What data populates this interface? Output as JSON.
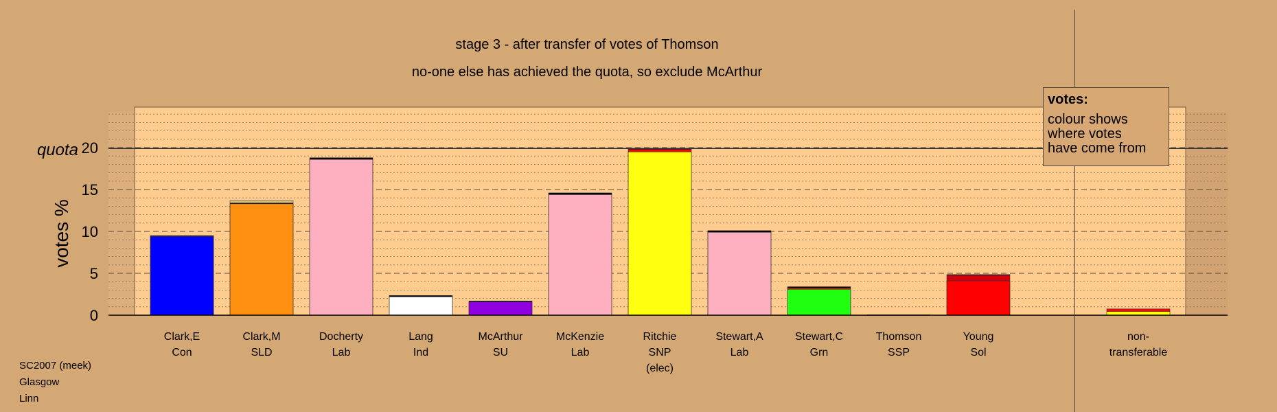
{
  "title": "stage 3 - after transfer of votes of Thomson",
  "subtitle": "no-one else has achieved the quota, so exclude McArthur",
  "legend": {
    "title": "votes:",
    "line1": "colour shows",
    "line2": "where votes",
    "line3": "have come from"
  },
  "footer": {
    "line1": "SC2007 (meek)",
    "line2": "Glasgow",
    "line3": "Linn"
  },
  "chart_data": {
    "type": "bar",
    "ylabel": "votes %",
    "quota_label": "quota",
    "quota": 19.9,
    "ylim": [
      0,
      24
    ],
    "yticks": [
      0,
      5,
      10,
      15,
      20
    ],
    "grid": "dashed horizontal",
    "categories": [
      {
        "name": "Clark,E",
        "party": "Con",
        "extra": "",
        "color": "#0000ff",
        "base": 9.4,
        "transfers": [
          {
            "from": "SSP",
            "value": 0.1,
            "color": "#000000"
          }
        ]
      },
      {
        "name": "Clark,M",
        "party": "SLD",
        "extra": "",
        "color": "#ff9010",
        "base": 13.3,
        "transfers": [
          {
            "from": "SSP",
            "value": 0.1,
            "color": "#000000"
          },
          {
            "from": "Grn",
            "value": 0.3,
            "color": "#d4c080"
          }
        ]
      },
      {
        "name": "Docherty",
        "party": "Lab",
        "extra": "",
        "color": "#ffb0c0",
        "base": 18.6,
        "transfers": [
          {
            "from": "SSP",
            "value": 0.2,
            "color": "#000000"
          }
        ]
      },
      {
        "name": "Lang",
        "party": "Ind",
        "extra": "",
        "color": "#ffffff",
        "base": 2.2,
        "transfers": [
          {
            "from": "SSP",
            "value": 0.15,
            "color": "#000000"
          }
        ]
      },
      {
        "name": "McArthur",
        "party": "SU",
        "extra": "",
        "color": "#9000e0",
        "base": 1.6,
        "transfers": [
          {
            "from": "SSP",
            "value": 0.1,
            "color": "#000000"
          }
        ]
      },
      {
        "name": "McKenzie",
        "party": "Lab",
        "extra": "",
        "color": "#ffb0c0",
        "base": 14.4,
        "transfers": [
          {
            "from": "SSP",
            "value": 0.2,
            "color": "#000000"
          }
        ]
      },
      {
        "name": "Ritchie",
        "party": "SNP",
        "extra": "(elec)",
        "color": "#ffff10",
        "base": 19.5,
        "transfers": [
          {
            "from": "Sol",
            "value": 0.3,
            "color": "#ff0000"
          },
          {
            "from": "SSP",
            "value": 0.1,
            "color": "#000000"
          }
        ]
      },
      {
        "name": "Stewart,A",
        "party": "Lab",
        "extra": "",
        "color": "#ffb0c0",
        "base": 9.9,
        "transfers": [
          {
            "from": "SSP",
            "value": 0.2,
            "color": "#000000"
          }
        ]
      },
      {
        "name": "Stewart,C",
        "party": "Grn",
        "extra": "",
        "color": "#20ff10",
        "base": 3.1,
        "transfers": [
          {
            "from": "Sol",
            "value": 0.15,
            "color": "#ff0000"
          },
          {
            "from": "SSP",
            "value": 0.15,
            "color": "#000000"
          }
        ]
      },
      {
        "name": "Thomson",
        "party": "SSP",
        "extra": "",
        "color": "#ff0000",
        "base": 0.0,
        "transfers": [
          {
            "from": "SSP",
            "value": 0.05,
            "color": "#000000"
          }
        ]
      },
      {
        "name": "Young",
        "party": "Sol",
        "extra": "",
        "color": "#ff0000",
        "base": 4.1,
        "transfers": [
          {
            "from": "SSP",
            "value": 0.7,
            "color": "#d00010"
          },
          {
            "from": "SSP",
            "value": 0.05,
            "color": "#000000"
          }
        ]
      }
    ],
    "nontransferable": {
      "name": "non-",
      "name2": "transferable",
      "segments": [
        {
          "value": 0.45,
          "color": "#ffff10"
        },
        {
          "value": 0.3,
          "color": "#ff0000"
        }
      ]
    }
  }
}
